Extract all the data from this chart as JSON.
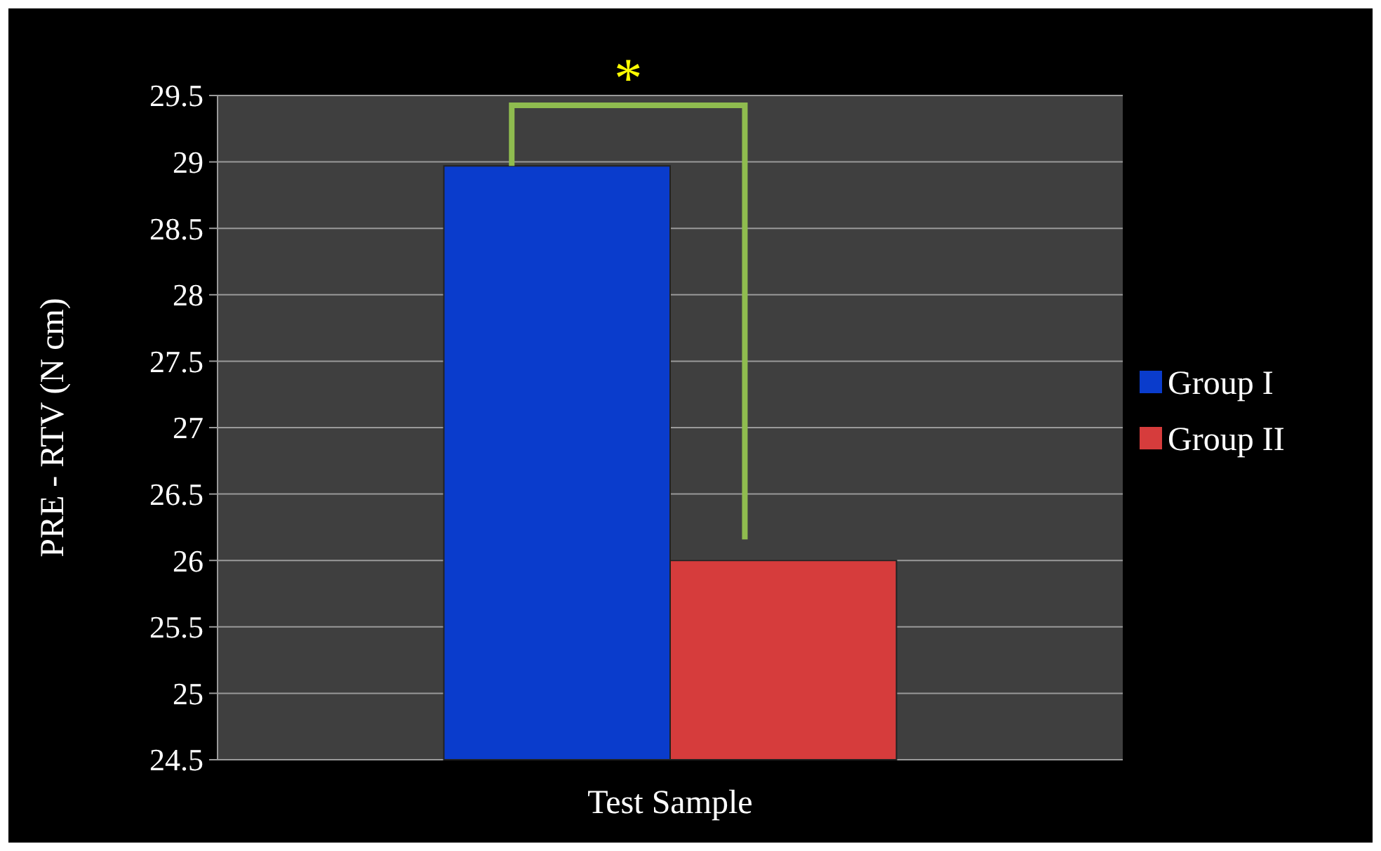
{
  "chart_data": {
    "type": "bar",
    "ylabel": "PRE - RTV (N cm)",
    "categories": [
      "Test Sample"
    ],
    "series": [
      {
        "name": "Group I",
        "color": "#0a3ccc",
        "values": [
          28.97
        ]
      },
      {
        "name": "Group II",
        "color": "#d63c3c",
        "values": [
          26.0
        ]
      }
    ],
    "ylim": [
      24.5,
      29.5
    ],
    "yticks": [
      24.5,
      25,
      25.5,
      26,
      26.5,
      27,
      27.5,
      28,
      28.5,
      29,
      29.5
    ],
    "grid": "y",
    "legend": "right",
    "annotations": [
      "*"
    ]
  }
}
